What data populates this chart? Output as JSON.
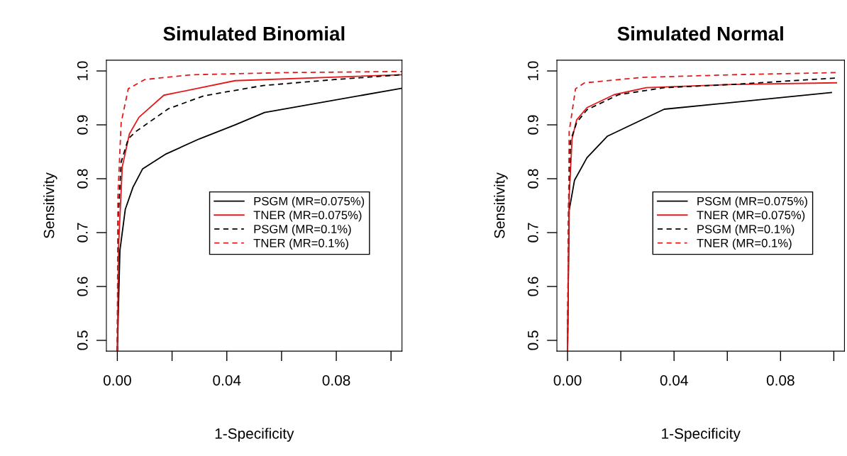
{
  "chart_data": [
    {
      "type": "line",
      "title": "Simulated Binomial",
      "xlabel": "1-Specificity",
      "ylabel": "Sensitivity",
      "xlim": [
        -0.004,
        0.104
      ],
      "ylim": [
        0.48,
        1.02
      ],
      "xticks": [
        {
          "value": 0,
          "label": "0.00"
        },
        {
          "value": 0.02,
          "label": null
        },
        {
          "value": 0.04,
          "label": "0.04"
        },
        {
          "value": 0.06,
          "label": null
        },
        {
          "value": 0.08,
          "label": "0.08"
        },
        {
          "value": 0.1,
          "label": null
        }
      ],
      "yticks": [
        0.5,
        0.6,
        0.7,
        0.8,
        0.9,
        {
          "value": 1.0,
          "label": "1.0"
        }
      ],
      "legend": "right",
      "series": [
        {
          "name": "PSGM (MR=0.075%)",
          "color": "#000000",
          "line_style": "solid",
          "x": [
            0,
            0.00095,
            0.0029,
            0.0057,
            0.0092,
            0.0178,
            0.03,
            0.043,
            0.0538,
            0.104
          ],
          "values": [
            0.48,
            0.667,
            0.743,
            0.784,
            0.818,
            0.846,
            0.874,
            0.9,
            0.923,
            0.968
          ]
        },
        {
          "name": "TNER (MR=0.075%)",
          "color": "#e31a1c",
          "line_style": "solid",
          "x": [
            0,
            0.0005,
            0.0018,
            0.0044,
            0.0079,
            0.017,
            0.043,
            0.104
          ],
          "values": [
            0.48,
            0.68,
            0.822,
            0.883,
            0.914,
            0.955,
            0.982,
            0.993
          ]
        },
        {
          "name": "PSGM (MR=0.1%)",
          "color": "#000000",
          "line_style": "dashed",
          "x": [
            0,
            0.0003,
            0.0014,
            0.004,
            0.0066,
            0.0187,
            0.0317,
            0.0533,
            0.0793,
            0.104
          ],
          "values": [
            0.48,
            0.723,
            0.831,
            0.874,
            0.887,
            0.93,
            0.954,
            0.973,
            0.984,
            0.993
          ]
        },
        {
          "name": "TNER (MR=0.1%)",
          "color": "#e31a1c",
          "line_style": "dashed",
          "x": [
            0,
            0.0002,
            0.0014,
            0.004,
            0.01,
            0.027,
            0.062,
            0.104
          ],
          "values": [
            0.48,
            0.766,
            0.904,
            0.967,
            0.984,
            0.993,
            0.997,
            0.999
          ]
        }
      ]
    },
    {
      "type": "line",
      "title": "Simulated Normal",
      "xlabel": "1-Specificity",
      "ylabel": "Sensitivity",
      "xlim": [
        -0.004,
        0.104
      ],
      "ylim": [
        0.48,
        1.02
      ],
      "xticks": [
        {
          "value": 0,
          "label": "0.00"
        },
        {
          "value": 0.02,
          "label": null
        },
        {
          "value": 0.04,
          "label": "0.04"
        },
        {
          "value": 0.06,
          "label": null
        },
        {
          "value": 0.08,
          "label": "0.08"
        },
        {
          "value": 0.1,
          "label": null
        }
      ],
      "yticks": [
        0.5,
        0.6,
        0.7,
        0.8,
        0.9,
        {
          "value": 1.0,
          "label": "1.0"
        }
      ],
      "legend": "right",
      "series": [
        {
          "name": "PSGM (MR=0.075%)",
          "color": "#000000",
          "line_style": "solid",
          "x": [
            0,
            0.0006,
            0.0026,
            0.0073,
            0.015,
            0.0363,
            0.0991
          ],
          "values": [
            0.48,
            0.741,
            0.797,
            0.839,
            0.879,
            0.929,
            0.96
          ]
        },
        {
          "name": "TNER (MR=0.075%)",
          "color": "#e31a1c",
          "line_style": "solid",
          "x": [
            0,
            0.0006,
            0.0017,
            0.0034,
            0.0073,
            0.0175,
            0.0295,
            0.062,
            0.101
          ],
          "values": [
            0.48,
            0.766,
            0.874,
            0.909,
            0.932,
            0.956,
            0.969,
            0.975,
            0.978
          ]
        },
        {
          "name": "PSGM (MR=0.1%)",
          "color": "#000000",
          "line_style": "dashed",
          "x": [
            0,
            0.0004,
            0.0011,
            0.0034,
            0.0073,
            0.0192,
            0.0363,
            0.062,
            0.101
          ],
          "values": [
            0.48,
            0.749,
            0.87,
            0.904,
            0.928,
            0.956,
            0.969,
            0.975,
            0.987
          ]
        },
        {
          "name": "TNER (MR=0.1%)",
          "color": "#e31a1c",
          "line_style": "dashed",
          "x": [
            0,
            0.0006,
            0.003,
            0.0064,
            0.0278,
            0.062,
            0.101
          ],
          "values": [
            0.48,
            0.887,
            0.967,
            0.978,
            0.988,
            0.993,
            0.997
          ]
        }
      ]
    }
  ]
}
